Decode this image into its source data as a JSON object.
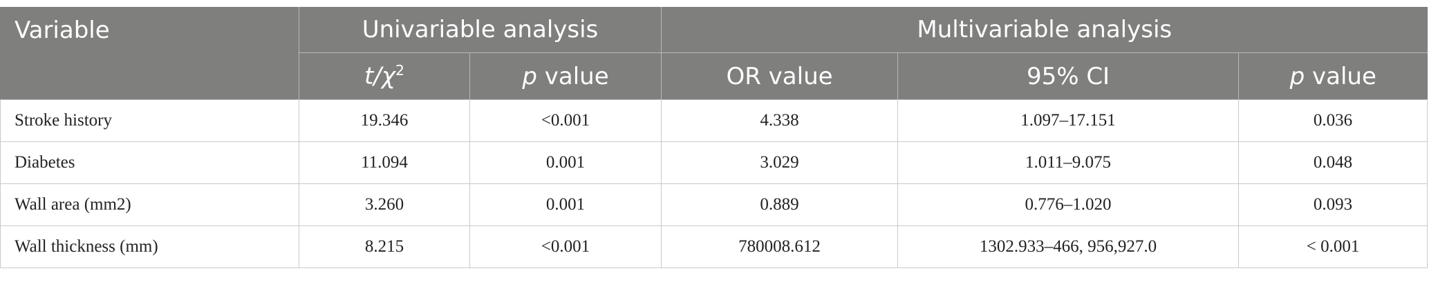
{
  "header": {
    "variable": "Variable",
    "groups": [
      "Univariable analysis",
      "Multivariable analysis"
    ],
    "columns": [
      {
        "parts": [
          {
            "text": "t/χ",
            "style": "italic"
          },
          {
            "text": "2",
            "style": "sup"
          }
        ]
      },
      {
        "parts": [
          {
            "text": "p",
            "style": "italic"
          },
          {
            "text": " value",
            "style": "normal"
          }
        ]
      },
      {
        "parts": [
          {
            "text": "OR value",
            "style": "normal"
          }
        ]
      },
      {
        "parts": [
          {
            "text": "95% CI",
            "style": "normal"
          }
        ]
      },
      {
        "parts": [
          {
            "text": "p",
            "style": "italic"
          },
          {
            "text": " value",
            "style": "normal"
          }
        ]
      }
    ]
  },
  "table": {
    "rows": [
      [
        "Stroke history",
        "19.346",
        "<0.001",
        "4.338",
        "1.097–17.151",
        "0.036"
      ],
      [
        "Diabetes",
        "11.094",
        "0.001",
        "3.029",
        "1.011–9.075",
        "0.048"
      ],
      [
        "Wall area (mm2)",
        "3.260",
        "0.001",
        "0.889",
        "0.776–1.020",
        "0.093"
      ],
      [
        "Wall thickness (mm)",
        "8.215",
        "<0.001",
        "780008.612",
        "1302.933–466, 956,927.0",
        "< 0.001"
      ]
    ]
  }
}
